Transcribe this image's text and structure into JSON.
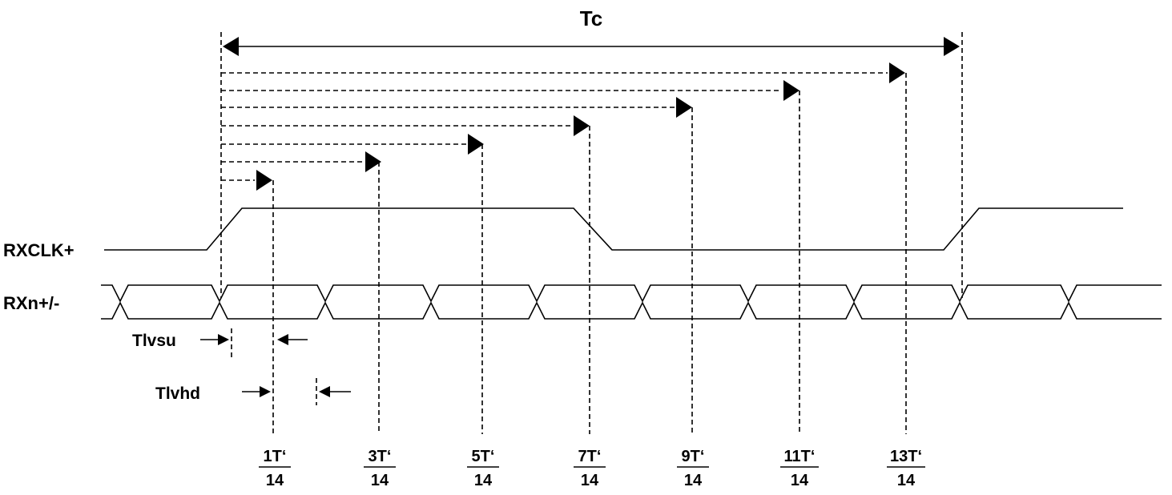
{
  "diagram": {
    "title": "Tc",
    "signals": {
      "clock_label": "RXCLK+",
      "data_label": "RXn+/-"
    },
    "setup_label": "Tlvsu",
    "hold_label": "Tlvhd",
    "sample_labels": [
      {
        "num": "1T‘",
        "den": "14"
      },
      {
        "num": "3T‘",
        "den": "14"
      },
      {
        "num": "5T‘",
        "den": "14"
      },
      {
        "num": "7T‘",
        "den": "14"
      },
      {
        "num": "9T‘",
        "den": "14"
      },
      {
        "num": "11T‘",
        "den": "14"
      },
      {
        "num": "13T‘",
        "den": "14"
      }
    ]
  }
}
